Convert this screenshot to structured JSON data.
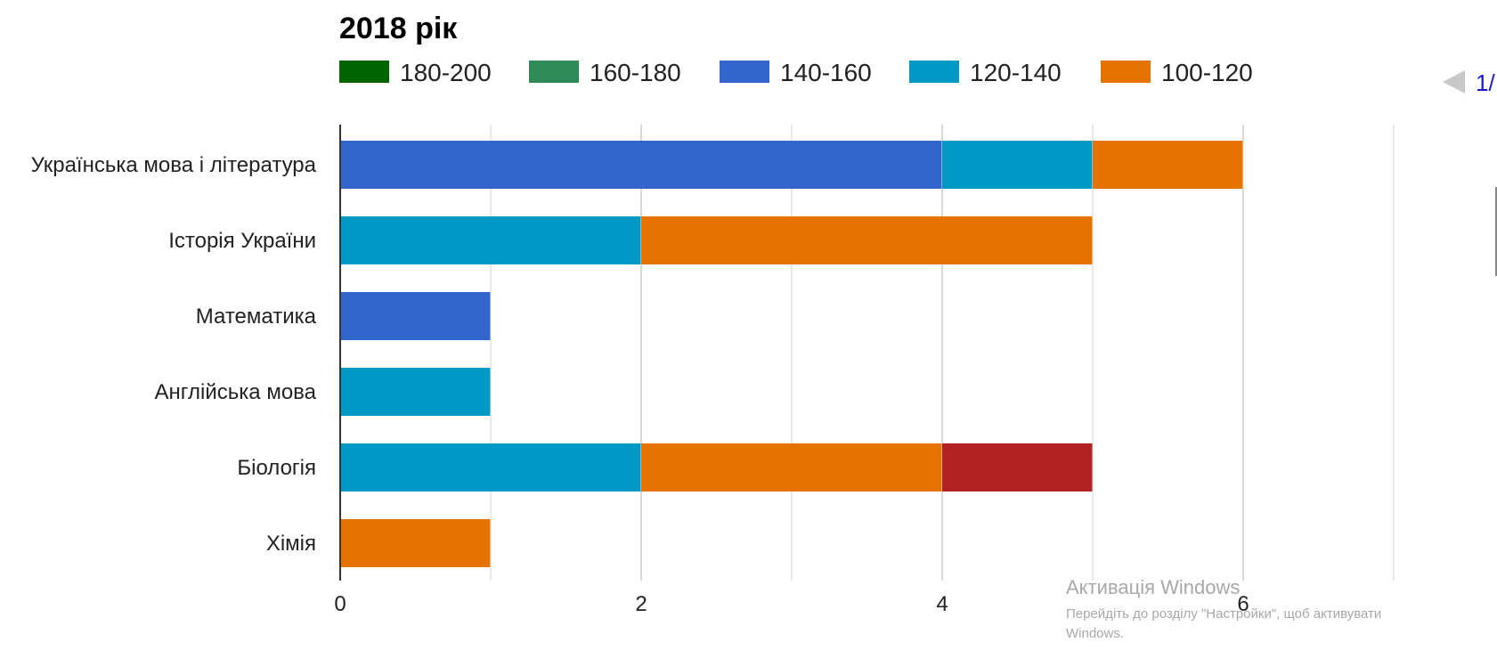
{
  "chart_data": {
    "type": "bar",
    "orientation": "horizontal",
    "stacked": true,
    "title": "2018 рік",
    "legend_position": "top",
    "legend": [
      {
        "name": "180-200",
        "color": "#006400"
      },
      {
        "name": "160-180",
        "color": "#2e8b57"
      },
      {
        "name": "140-160",
        "color": "#3366cc"
      },
      {
        "name": "120-140",
        "color": "#0099c6"
      },
      {
        "name": "100-120",
        "color": "#e67300"
      }
    ],
    "categories": [
      "Українська мова і література",
      "Історія України",
      "Математика",
      "Англійська мова",
      "Біологія",
      "Хімія"
    ],
    "series": [
      {
        "name": "180-200",
        "color": "#006400",
        "values": [
          0,
          0,
          0,
          0,
          0,
          0
        ]
      },
      {
        "name": "160-180",
        "color": "#2e8b57",
        "values": [
          0,
          0,
          0,
          0,
          0,
          0
        ]
      },
      {
        "name": "140-160",
        "color": "#3366cc",
        "values": [
          4,
          0,
          1,
          0,
          0,
          0
        ]
      },
      {
        "name": "120-140",
        "color": "#0099c6",
        "values": [
          1,
          2,
          0,
          1,
          2,
          0
        ]
      },
      {
        "name": "100-120",
        "color": "#e67300",
        "values": [
          1,
          3,
          0,
          0,
          2,
          1
        ]
      },
      {
        "color": "#b22222",
        "values": [
          0,
          0,
          0,
          0,
          1,
          0
        ]
      }
    ],
    "x_ticks": [
      0,
      2,
      4,
      6
    ],
    "xlim": [
      0,
      7
    ],
    "grid": true
  },
  "pager": {
    "text": "1/"
  },
  "watermark": {
    "title": "Активація Windows",
    "line1": "Перейдіть до розділу \"Настройки\", щоб активувати",
    "line2": "Windows."
  }
}
